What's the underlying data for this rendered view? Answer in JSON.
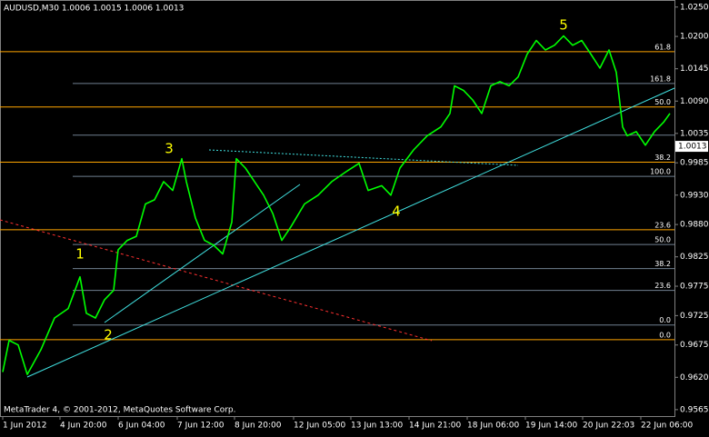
{
  "chart_data": {
    "type": "line",
    "title": "AUDUSD,M30  1.0006 1.0015 1.0006 1.0013",
    "footer": "MetaTrader 4, © 2001-2012, MetaQuotes Software Corp.",
    "xlim": [
      -1.5,
      369.5
    ],
    "ylim": [
      0.9554,
      1.0262
    ],
    "xticks": [
      {
        "value": 0,
        "label": "1 Jun 2012"
      },
      {
        "value": 31.5,
        "label": "4 Jun 20:00"
      },
      {
        "value": 63.5,
        "label": "6 Jun 04:00"
      },
      {
        "value": 96,
        "label": "7 Jun 12:00"
      },
      {
        "value": 127.5,
        "label": "8 Jun 20:00"
      },
      {
        "value": 160,
        "label": "12 Jun 05:00"
      },
      {
        "value": 191.5,
        "label": "13 Jun 13:00"
      },
      {
        "value": 223.5,
        "label": "14 Jun 21:00"
      },
      {
        "value": 255.5,
        "label": "18 Jun 06:00"
      },
      {
        "value": 287.5,
        "label": "19 Jun 14:00"
      },
      {
        "value": 319,
        "label": "20 Jun 22:03"
      },
      {
        "value": 351,
        "label": "22 Jun 06:00"
      }
    ],
    "yticks": [
      {
        "value": 1.025,
        "label": "1.0250"
      },
      {
        "value": 1.02,
        "label": "1.0200"
      },
      {
        "value": 1.0145,
        "label": "1.0145"
      },
      {
        "value": 1.009,
        "label": "1.0090"
      },
      {
        "value": 1.0035,
        "label": "1.0035"
      },
      {
        "value": 0.9985,
        "label": "0.9985"
      },
      {
        "value": 0.993,
        "label": "0.9930"
      },
      {
        "value": 0.988,
        "label": "0.9880"
      },
      {
        "value": 0.9825,
        "label": "0.9825"
      },
      {
        "value": 0.9775,
        "label": "0.9775"
      },
      {
        "value": 0.9725,
        "label": "0.9725"
      },
      {
        "value": 0.9675,
        "label": "0.9675"
      },
      {
        "value": 0.962,
        "label": "0.9620"
      },
      {
        "value": 0.9565,
        "label": "0.9565"
      }
    ],
    "series": [
      {
        "color": "#00ff00",
        "x": [
          0,
          3.5,
          8.5,
          13.5,
          21,
          28.5,
          36,
          42.5,
          46,
          51,
          56,
          61,
          63.5,
          68.5,
          73.5,
          78.5,
          83.5,
          88.5,
          93.5,
          98.5,
          101,
          106,
          111,
          116,
          121,
          126,
          128.5,
          133.5,
          138.5,
          143.5,
          148.5,
          153.5,
          158.5,
          166,
          173.5,
          181,
          188.5,
          196,
          201,
          208.5,
          213.5,
          218.5,
          226,
          233.5,
          241,
          246,
          248.5,
          253.5,
          258.5,
          263.5,
          268.5,
          273.5,
          278.5,
          283.5,
          288.5,
          293.5,
          298.5,
          303.5,
          308.5,
          313.5,
          318.5,
          323.5,
          328.5,
          333.5,
          337.5,
          341,
          343.5,
          348.5,
          353.5,
          358.5,
          363.5,
          367
        ],
        "values": [
          0.9629,
          0.9683,
          0.9675,
          0.9625,
          0.9667,
          0.9721,
          0.9737,
          0.9791,
          0.9729,
          0.9721,
          0.9752,
          0.9768,
          0.9837,
          0.9853,
          0.986,
          0.9915,
          0.9922,
          0.9953,
          0.9938,
          0.9992,
          0.9953,
          0.9891,
          0.9853,
          0.9845,
          0.983,
          0.9884,
          0.9992,
          0.9976,
          0.9953,
          0.993,
          0.9899,
          0.9853,
          0.9876,
          0.9915,
          0.993,
          0.9953,
          0.9969,
          0.9984,
          0.9938,
          0.9946,
          0.993,
          0.9976,
          1.0007,
          1.0031,
          1.0046,
          1.0069,
          1.0116,
          1.0108,
          1.0092,
          1.0069,
          1.0116,
          1.0123,
          1.0116,
          1.0131,
          1.017,
          1.0193,
          1.0177,
          1.0185,
          1.0201,
          1.0185,
          1.0193,
          1.017,
          1.0146,
          1.0177,
          1.0139,
          1.0046,
          1.0031,
          1.0038,
          1.0015,
          1.0038,
          1.0054,
          1.0069
        ]
      }
    ],
    "last_price": {
      "value": 1.0013,
      "label": "1.0013"
    },
    "levels": [
      {
        "label": "61.8",
        "price": 1.0174,
        "color": "#ffa500"
      },
      {
        "label": "161.8",
        "price": 1.012,
        "color": "#708090"
      },
      {
        "label": "50.0",
        "price": 1.008,
        "color": "#ffa500"
      },
      {
        "price": 1.0032,
        "color": "#708090"
      },
      {
        "label": "38.2",
        "price": 0.9986,
        "color": "#ffa500"
      },
      {
        "label": "100.0",
        "price": 0.9962,
        "color": "#708090"
      },
      {
        "label": "23.6",
        "price": 0.9871,
        "color": "#ffa500"
      },
      {
        "label": "50.0",
        "price": 0.9846,
        "color": "#708090"
      },
      {
        "label": "38.2",
        "price": 0.9805,
        "color": "#708090"
      },
      {
        "label": "23.6",
        "price": 0.9768,
        "color": "#708090"
      },
      {
        "label": "0.0",
        "price": 0.9709,
        "color": "#708090"
      },
      {
        "label": "0.0",
        "price": 0.9684,
        "color": "#ffa500"
      }
    ],
    "waves": [
      {
        "label": "1"
      },
      {
        "label": "2"
      },
      {
        "label": "3"
      },
      {
        "label": "4"
      },
      {
        "label": "5"
      }
    ]
  }
}
